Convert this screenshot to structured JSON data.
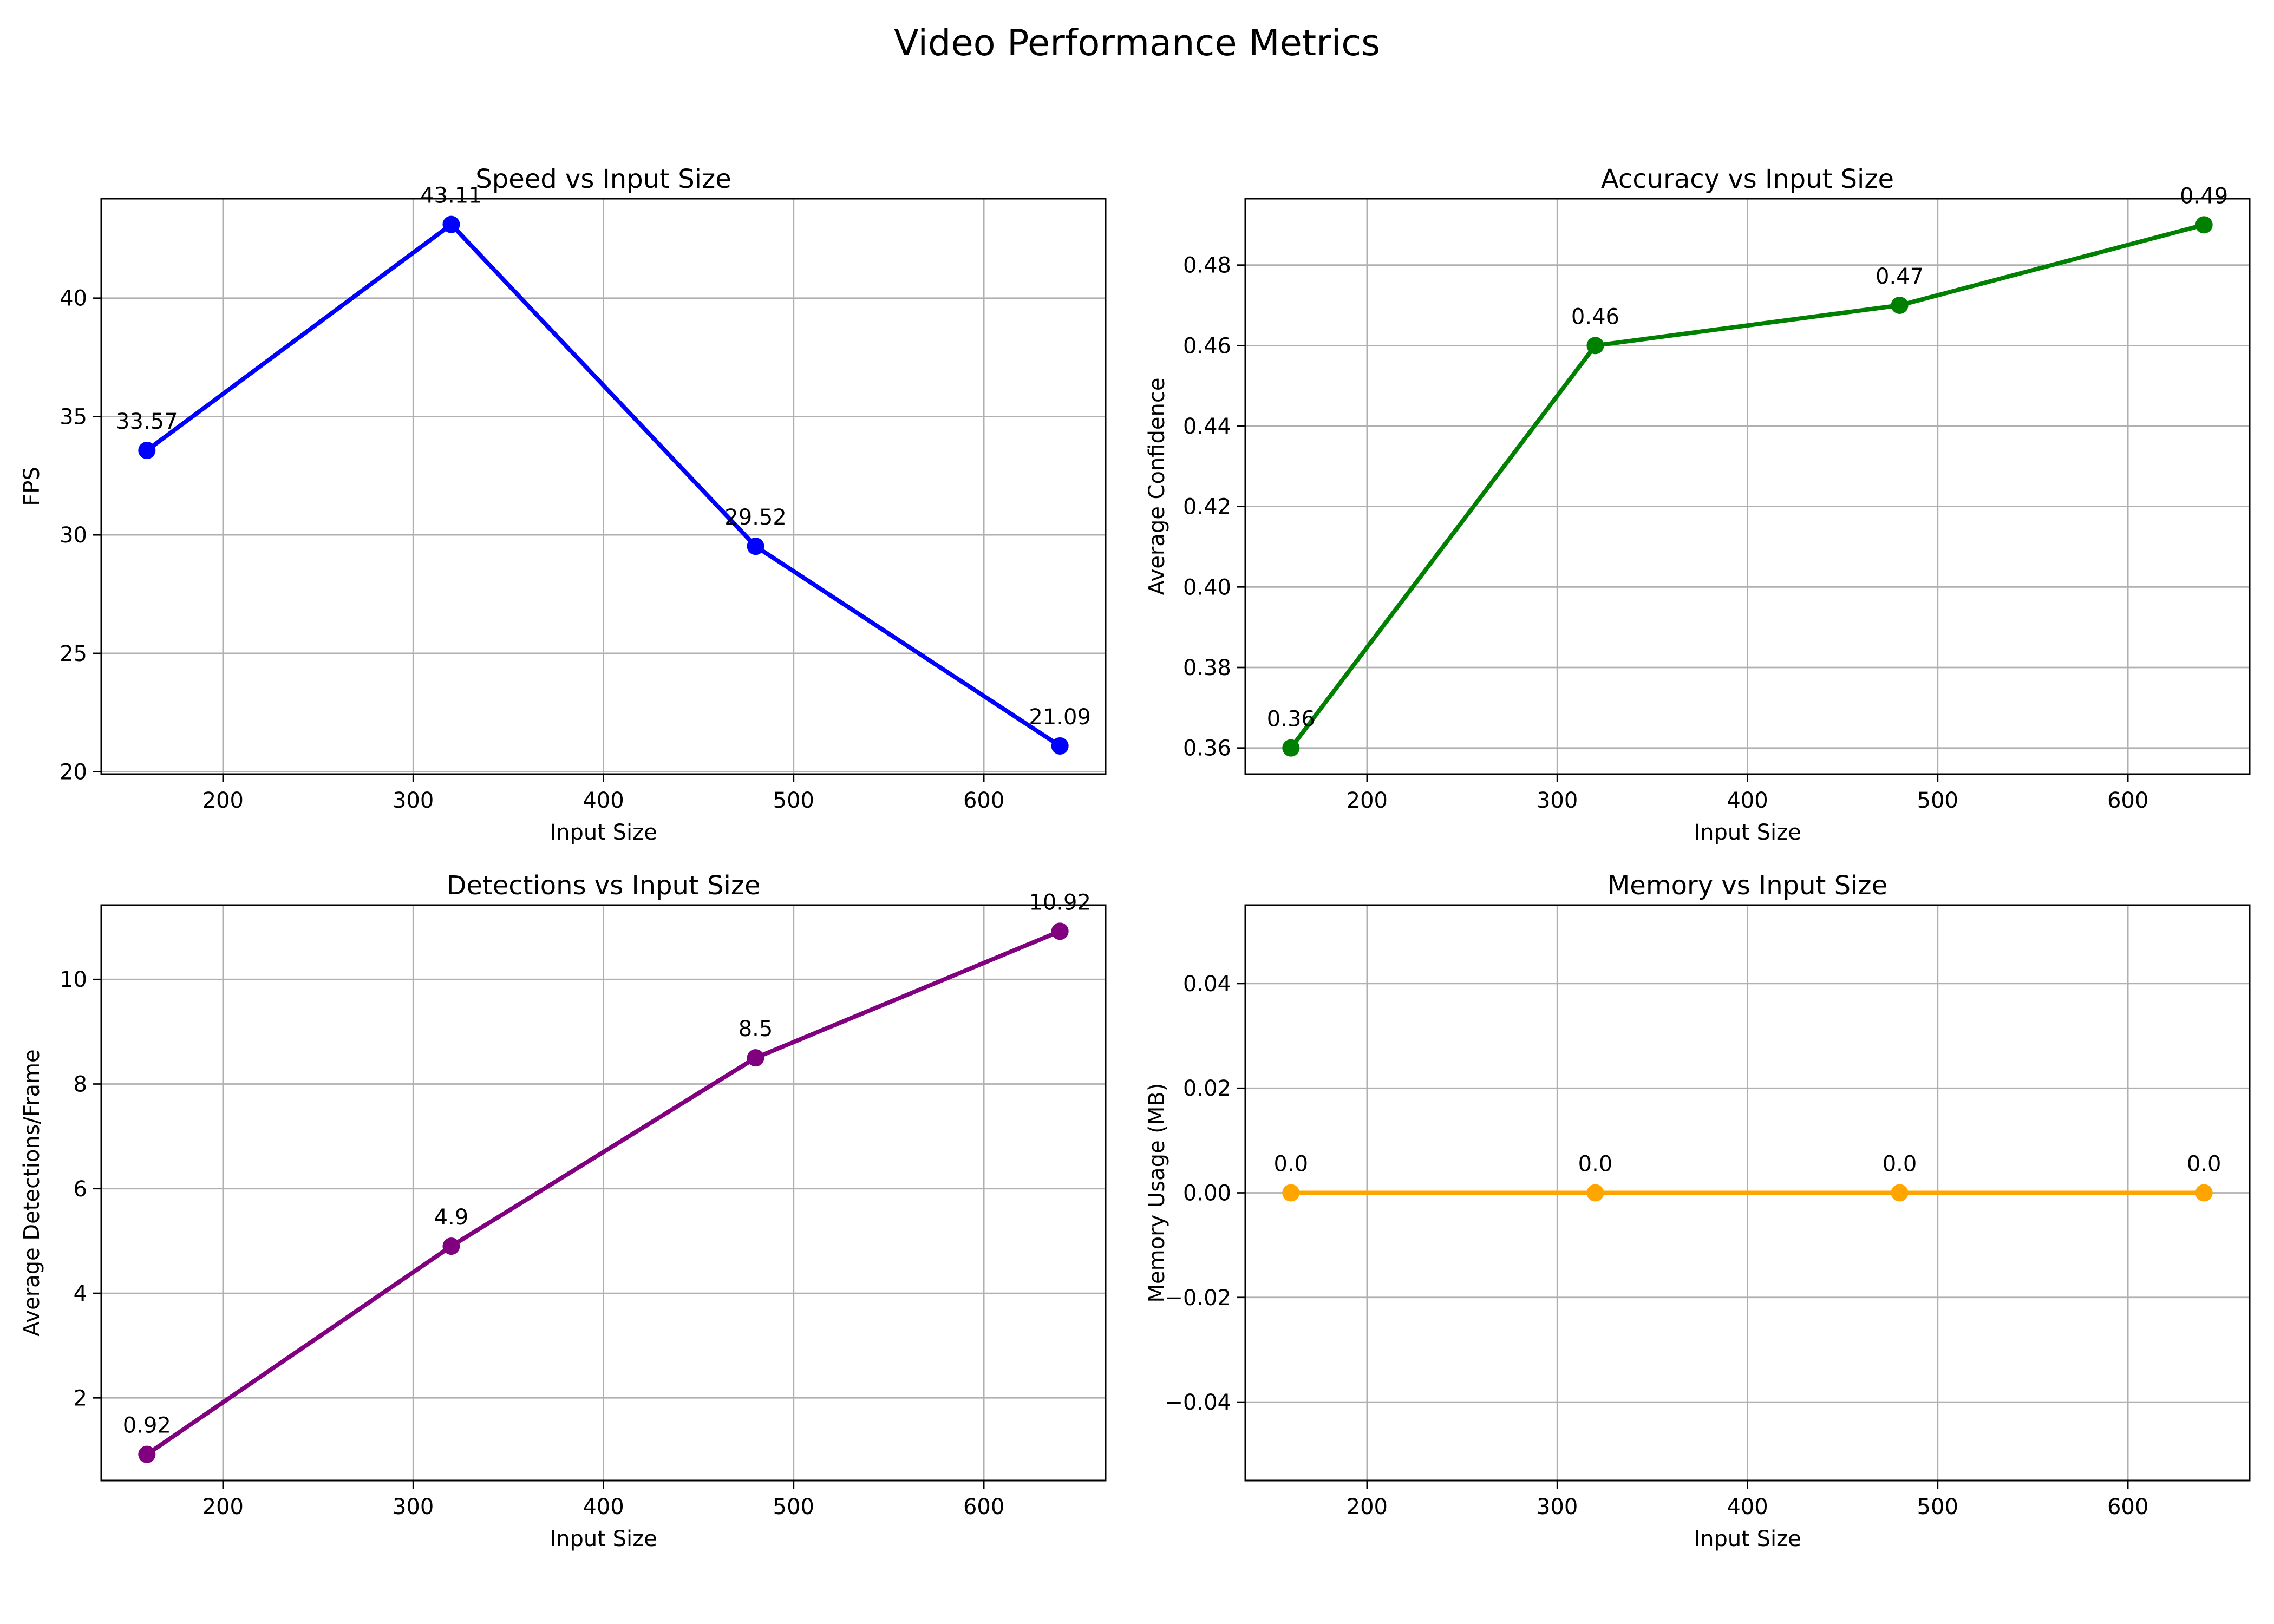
{
  "figure": {
    "title": "Video Performance Metrics"
  },
  "chart_data": [
    {
      "type": "line",
      "title": "Speed vs Input Size",
      "xlabel": "Input Size",
      "ylabel": "FPS",
      "x": [
        160,
        320,
        480,
        640
      ],
      "values": [
        33.57,
        43.11,
        29.52,
        21.09
      ],
      "labels": [
        "33.57",
        "43.11",
        "29.52",
        "21.09"
      ],
      "xlim": [
        136,
        664
      ],
      "ylim": [
        19.9,
        44.2
      ],
      "xticks": [
        200,
        300,
        400,
        500,
        600
      ],
      "yticks": [
        20,
        25,
        30,
        35,
        40
      ],
      "ytick_labels": [
        "20",
        "25",
        "30",
        "35",
        "40"
      ],
      "color": "#0000ff",
      "grid": true
    },
    {
      "type": "line",
      "title": "Accuracy vs Input Size",
      "xlabel": "Input Size",
      "ylabel": "Average Confidence",
      "x": [
        160,
        320,
        480,
        640
      ],
      "values": [
        0.36,
        0.46,
        0.47,
        0.49
      ],
      "labels": [
        "0.36",
        "0.46",
        "0.47",
        "0.49"
      ],
      "xlim": [
        136,
        664
      ],
      "ylim": [
        0.3535,
        0.4965
      ],
      "xticks": [
        200,
        300,
        400,
        500,
        600
      ],
      "yticks": [
        0.36,
        0.38,
        0.4,
        0.42,
        0.44,
        0.46,
        0.48
      ],
      "ytick_labels": [
        "0.36",
        "0.38",
        "0.40",
        "0.42",
        "0.44",
        "0.46",
        "0.48"
      ],
      "color": "#008000",
      "grid": true
    },
    {
      "type": "line",
      "title": "Detections vs Input Size",
      "xlabel": "Input Size",
      "ylabel": "Average Detections/Frame",
      "x": [
        160,
        320,
        480,
        640
      ],
      "values": [
        0.92,
        4.9,
        8.5,
        10.92
      ],
      "labels": [
        "0.92",
        "4.9",
        "8.5",
        "10.92"
      ],
      "xlim": [
        136,
        664
      ],
      "ylim": [
        0.42,
        11.42
      ],
      "xticks": [
        200,
        300,
        400,
        500,
        600
      ],
      "yticks": [
        2,
        4,
        6,
        8,
        10
      ],
      "ytick_labels": [
        "2",
        "4",
        "6",
        "8",
        "10"
      ],
      "color": "#800080",
      "grid": true
    },
    {
      "type": "line",
      "title": "Memory vs Input Size",
      "xlabel": "Input Size",
      "ylabel": "Memory Usage (MB)",
      "x": [
        160,
        320,
        480,
        640
      ],
      "values": [
        0.0,
        0.0,
        0.0,
        0.0
      ],
      "labels": [
        "0.0",
        "0.0",
        "0.0",
        "0.0"
      ],
      "xlim": [
        136,
        664
      ],
      "ylim": [
        -0.055,
        0.055
      ],
      "xticks": [
        200,
        300,
        400,
        500,
        600
      ],
      "yticks": [
        -0.04,
        -0.02,
        0.0,
        0.02,
        0.04
      ],
      "ytick_labels": [
        "−0.04",
        "−0.02",
        "0.00",
        "0.02",
        "0.04"
      ],
      "color": "#ffa500",
      "grid": true
    }
  ]
}
